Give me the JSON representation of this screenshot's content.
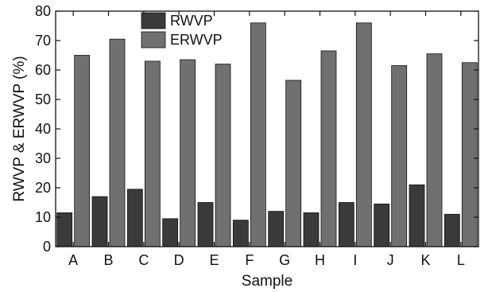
{
  "chart_data": {
    "type": "bar",
    "title": "",
    "xlabel": "Sample",
    "ylabel": "RWVP & ERWVP (%)",
    "ylim": [
      0,
      80
    ],
    "yticks": [
      0,
      10,
      20,
      30,
      40,
      50,
      60,
      70,
      80
    ],
    "categories": [
      "A",
      "B",
      "C",
      "D",
      "E",
      "F",
      "G",
      "H",
      "I",
      "J",
      "K",
      "L"
    ],
    "series": [
      {
        "name": "RWVP",
        "color": "#3a3a3a",
        "values": [
          11.5,
          17,
          19.5,
          9.5,
          15,
          9,
          12,
          11.5,
          15,
          14.5,
          21,
          11
        ]
      },
      {
        "name": "ERWVP",
        "color": "#707070",
        "values": [
          65,
          70.5,
          63,
          63.5,
          62,
          76,
          56.5,
          66.5,
          76,
          61.5,
          65.5,
          62.5
        ]
      }
    ],
    "grid": false,
    "legend_position": "top-center"
  }
}
